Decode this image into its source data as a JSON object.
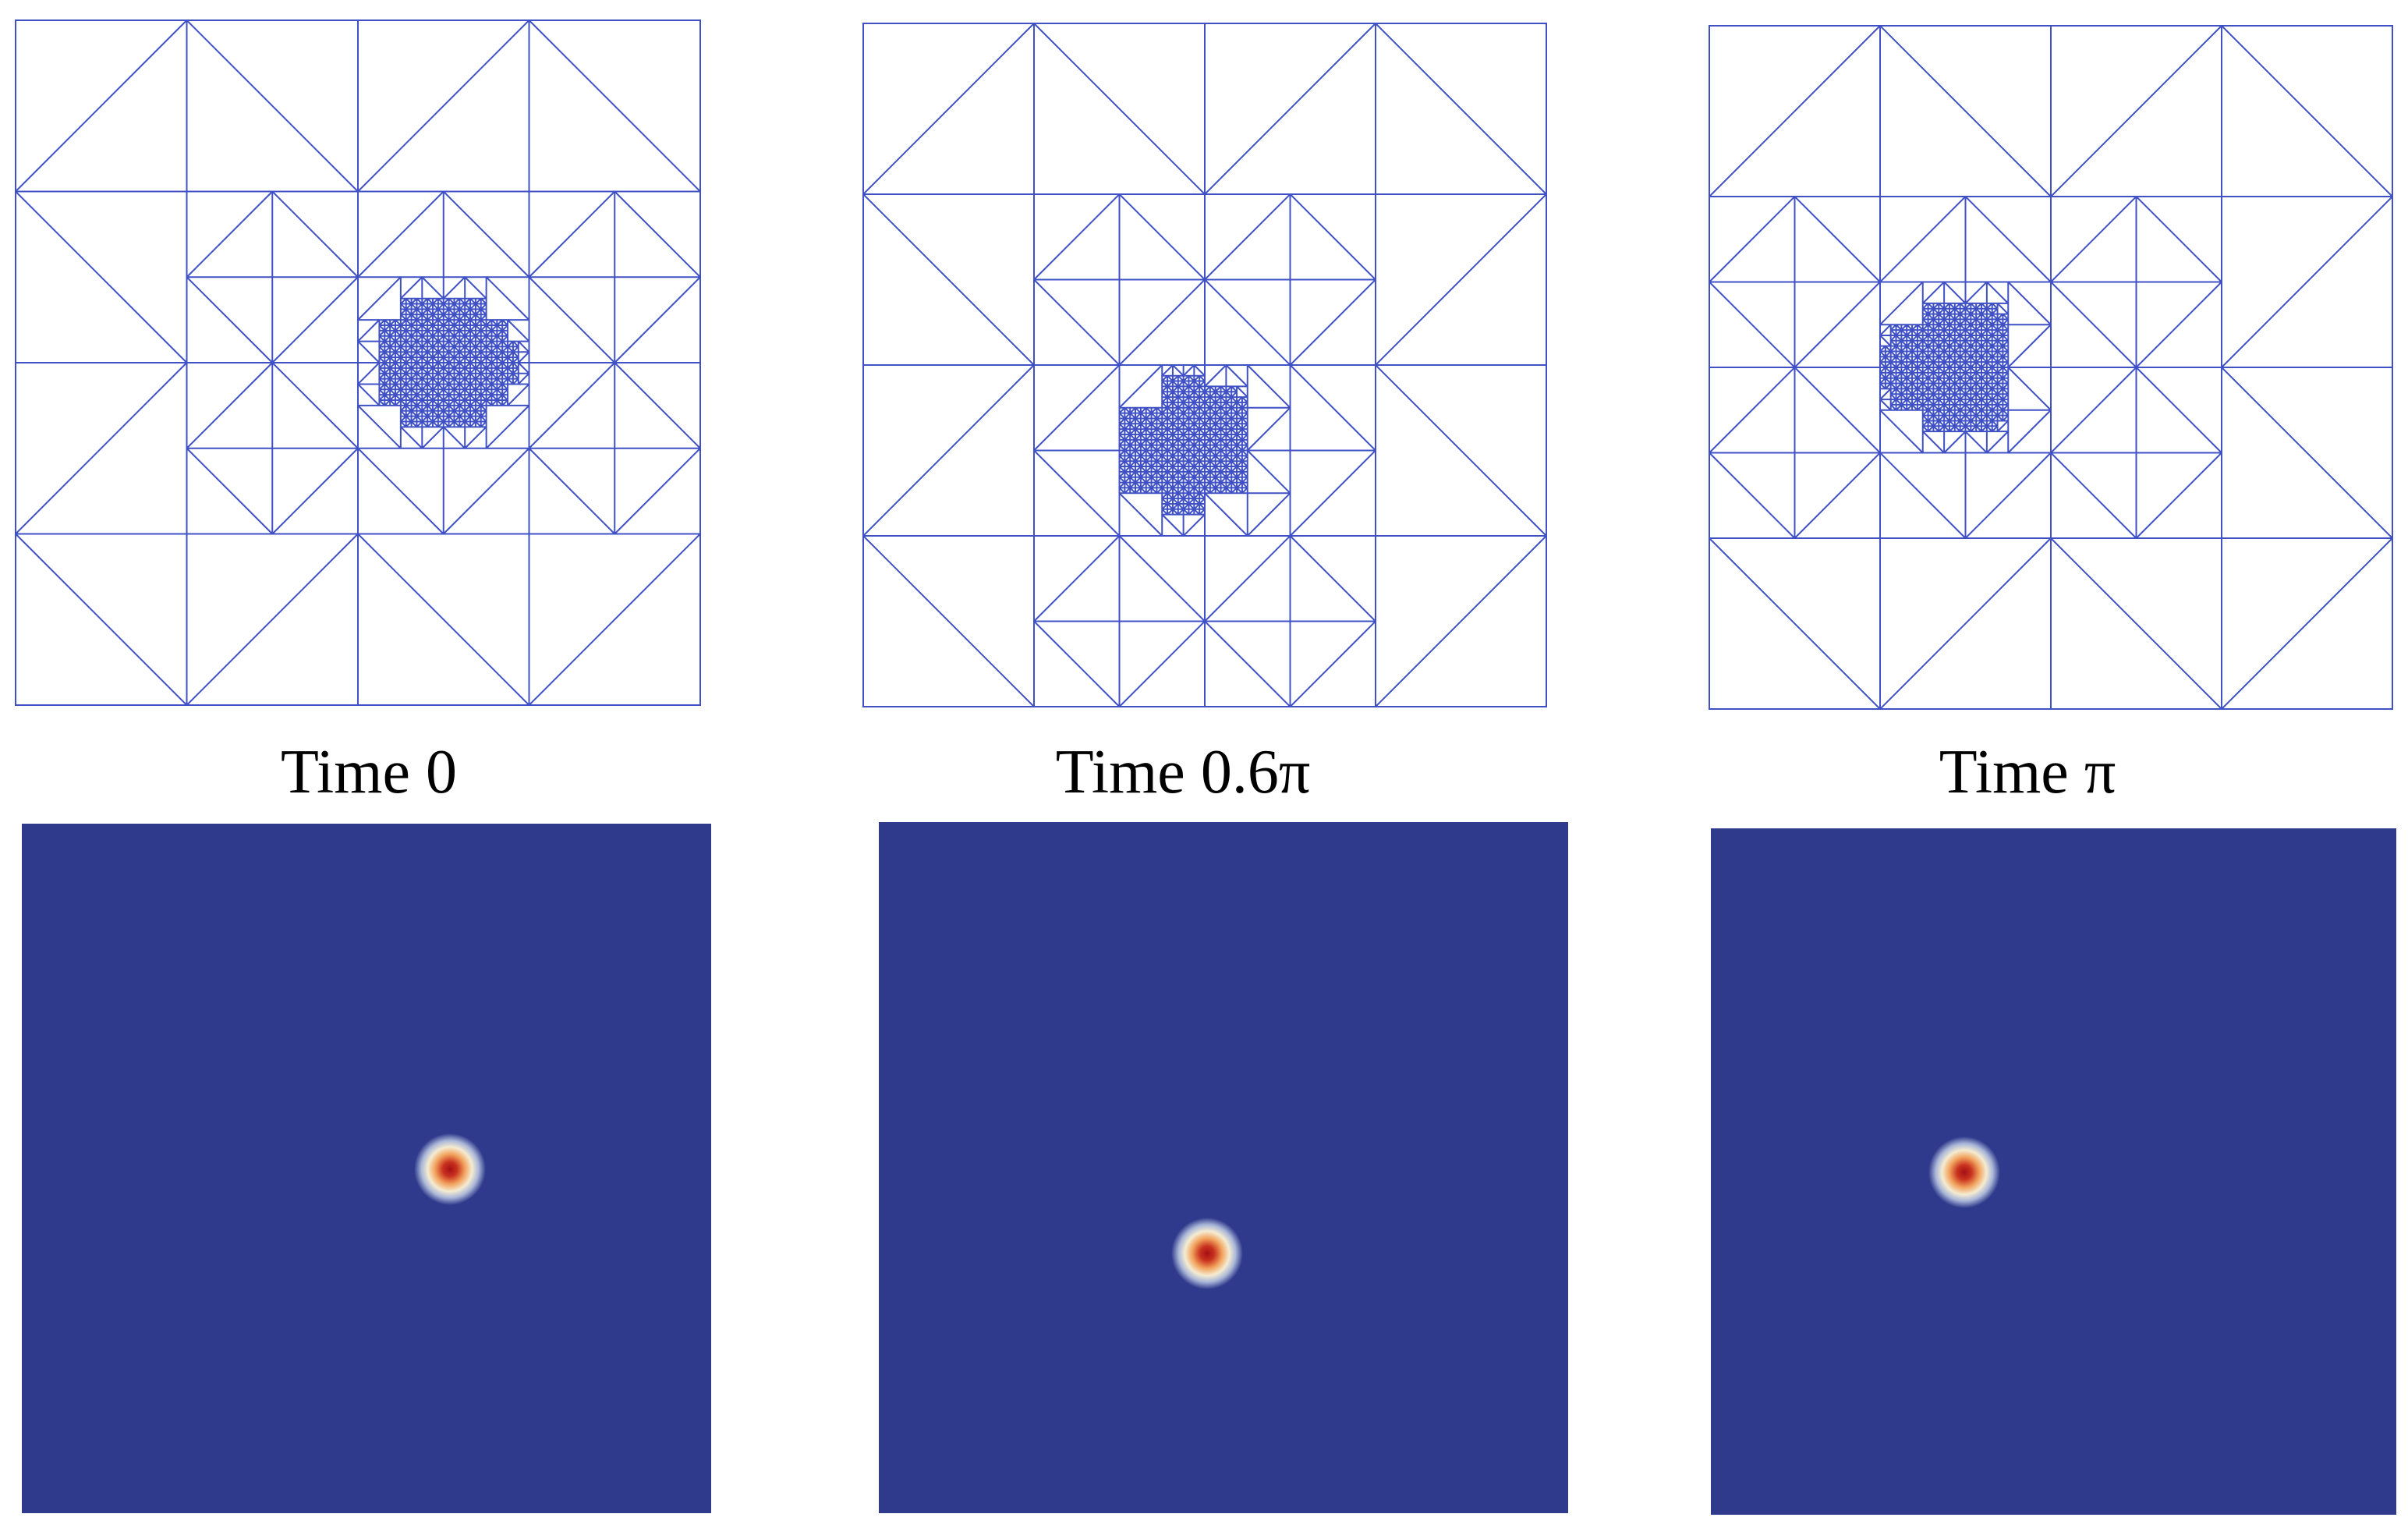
{
  "panels": [
    {
      "label": "Time 0"
    },
    {
      "label": "Time 0.6π"
    },
    {
      "label": "Time π"
    }
  ]
}
